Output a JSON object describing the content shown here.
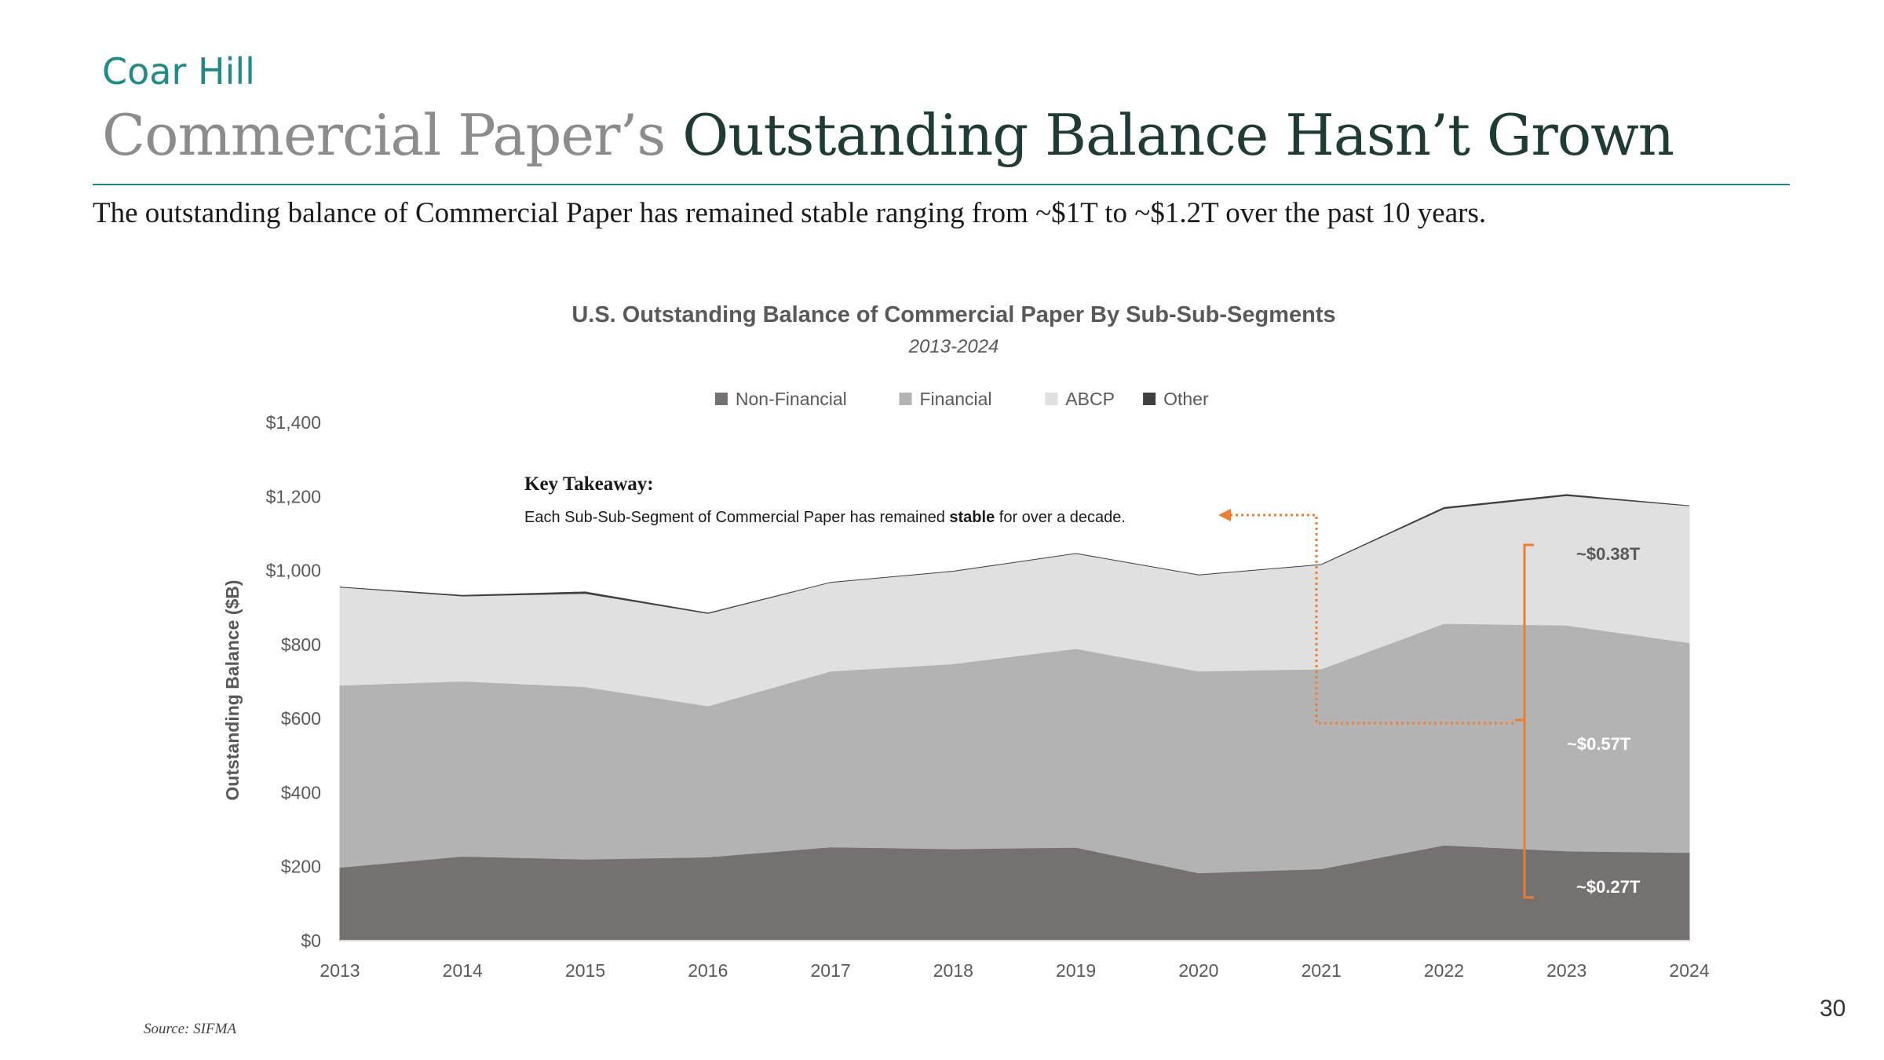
{
  "header": {
    "brand": "Coar Hill",
    "title_part1": "Commercial Paper’s",
    "title_part2": "Outstanding Balance Hasn’t Grown",
    "subtitle": "The outstanding balance of Commercial Paper has remained stable ranging from ~$1T to ~$1.2T over the past 10 years."
  },
  "footer": {
    "source": "Source: SIFMA",
    "page_number": "30"
  },
  "chart_data": {
    "type": "area",
    "stacked": true,
    "title": "U.S. Outstanding Balance of Commercial Paper By Sub-Sub-Segments",
    "subtitle": "2013-2024",
    "ylabel": "Outstanding Balance ($B)",
    "ylim": [
      0,
      1400
    ],
    "yticks": [
      0,
      200,
      400,
      600,
      800,
      1000,
      1200,
      1400
    ],
    "ytick_labels": [
      "$0",
      "$200",
      "$400",
      "$600",
      "$800",
      "$1,000",
      "$1,200",
      "$1,400"
    ],
    "categories": [
      "2013",
      "2014",
      "2015",
      "2016",
      "2017",
      "2018",
      "2019",
      "2020",
      "2021",
      "2022",
      "2023",
      "2024"
    ],
    "legend_position": "top",
    "series": [
      {
        "name": "Non-Financial",
        "color": "#767171",
        "values": [
          198,
          228,
          220,
          226,
          253,
          248,
          252,
          183,
          194,
          258,
          242,
          238
        ]
      },
      {
        "name": "Financial",
        "color": "#b3b3b3",
        "values": [
          492,
          473,
          466,
          408,
          475,
          500,
          537,
          545,
          540,
          599,
          610,
          567
        ]
      },
      {
        "name": "ABCP",
        "color": "#e0e0e0",
        "values": [
          265,
          230,
          252,
          250,
          240,
          250,
          257,
          260,
          282,
          310,
          350,
          370
        ]
      },
      {
        "name": "Other",
        "color": "#404040",
        "values": [
          0,
          2,
          4,
          1,
          0,
          0,
          0,
          0,
          0,
          3,
          3,
          0
        ]
      }
    ],
    "annotations": {
      "key_title": "Key Takeaway:",
      "key_text_before": "Each Sub-Sub-Segment of Commercial Paper has remained ",
      "key_text_bold": "stable",
      "key_text_after": " for over a decade.",
      "segment_labels": [
        "~$0.38T",
        "~$0.57T",
        "~$0.27T"
      ],
      "accent_color": "#ed7d31"
    }
  }
}
